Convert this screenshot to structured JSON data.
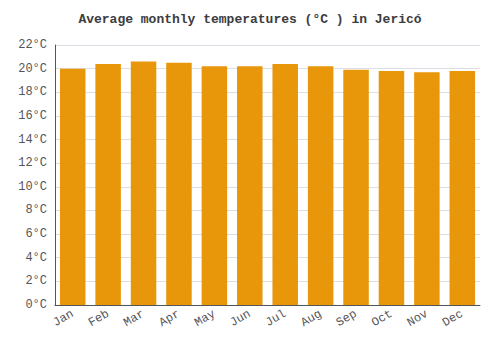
{
  "chart_data": {
    "type": "bar",
    "title": "Average monthly temperatures (°C ) in Jericó",
    "categories": [
      "Jan",
      "Feb",
      "Mar",
      "Apr",
      "May",
      "Jun",
      "Jul",
      "Aug",
      "Sep",
      "Oct",
      "Nov",
      "Dec"
    ],
    "values": [
      20.0,
      20.4,
      20.6,
      20.5,
      20.2,
      20.2,
      20.4,
      20.2,
      19.9,
      19.8,
      19.7,
      19.8
    ],
    "color": "#E8960A",
    "ylim": [
      0,
      22
    ],
    "yticks": [
      {
        "value": 0,
        "label": "0°C"
      },
      {
        "value": 2,
        "label": "2°C"
      },
      {
        "value": 4,
        "label": "4°C"
      },
      {
        "value": 6,
        "label": "6°C"
      },
      {
        "value": 8,
        "label": "8°C"
      },
      {
        "value": 10,
        "label": "10°C"
      },
      {
        "value": 12,
        "label": "12°C"
      },
      {
        "value": 14,
        "label": "14°C"
      },
      {
        "value": 16,
        "label": "16°C"
      },
      {
        "value": 18,
        "label": "18°C"
      },
      {
        "value": 20,
        "label": "20°C"
      },
      {
        "value": 22,
        "label": "22°C"
      }
    ],
    "grid": true
  }
}
